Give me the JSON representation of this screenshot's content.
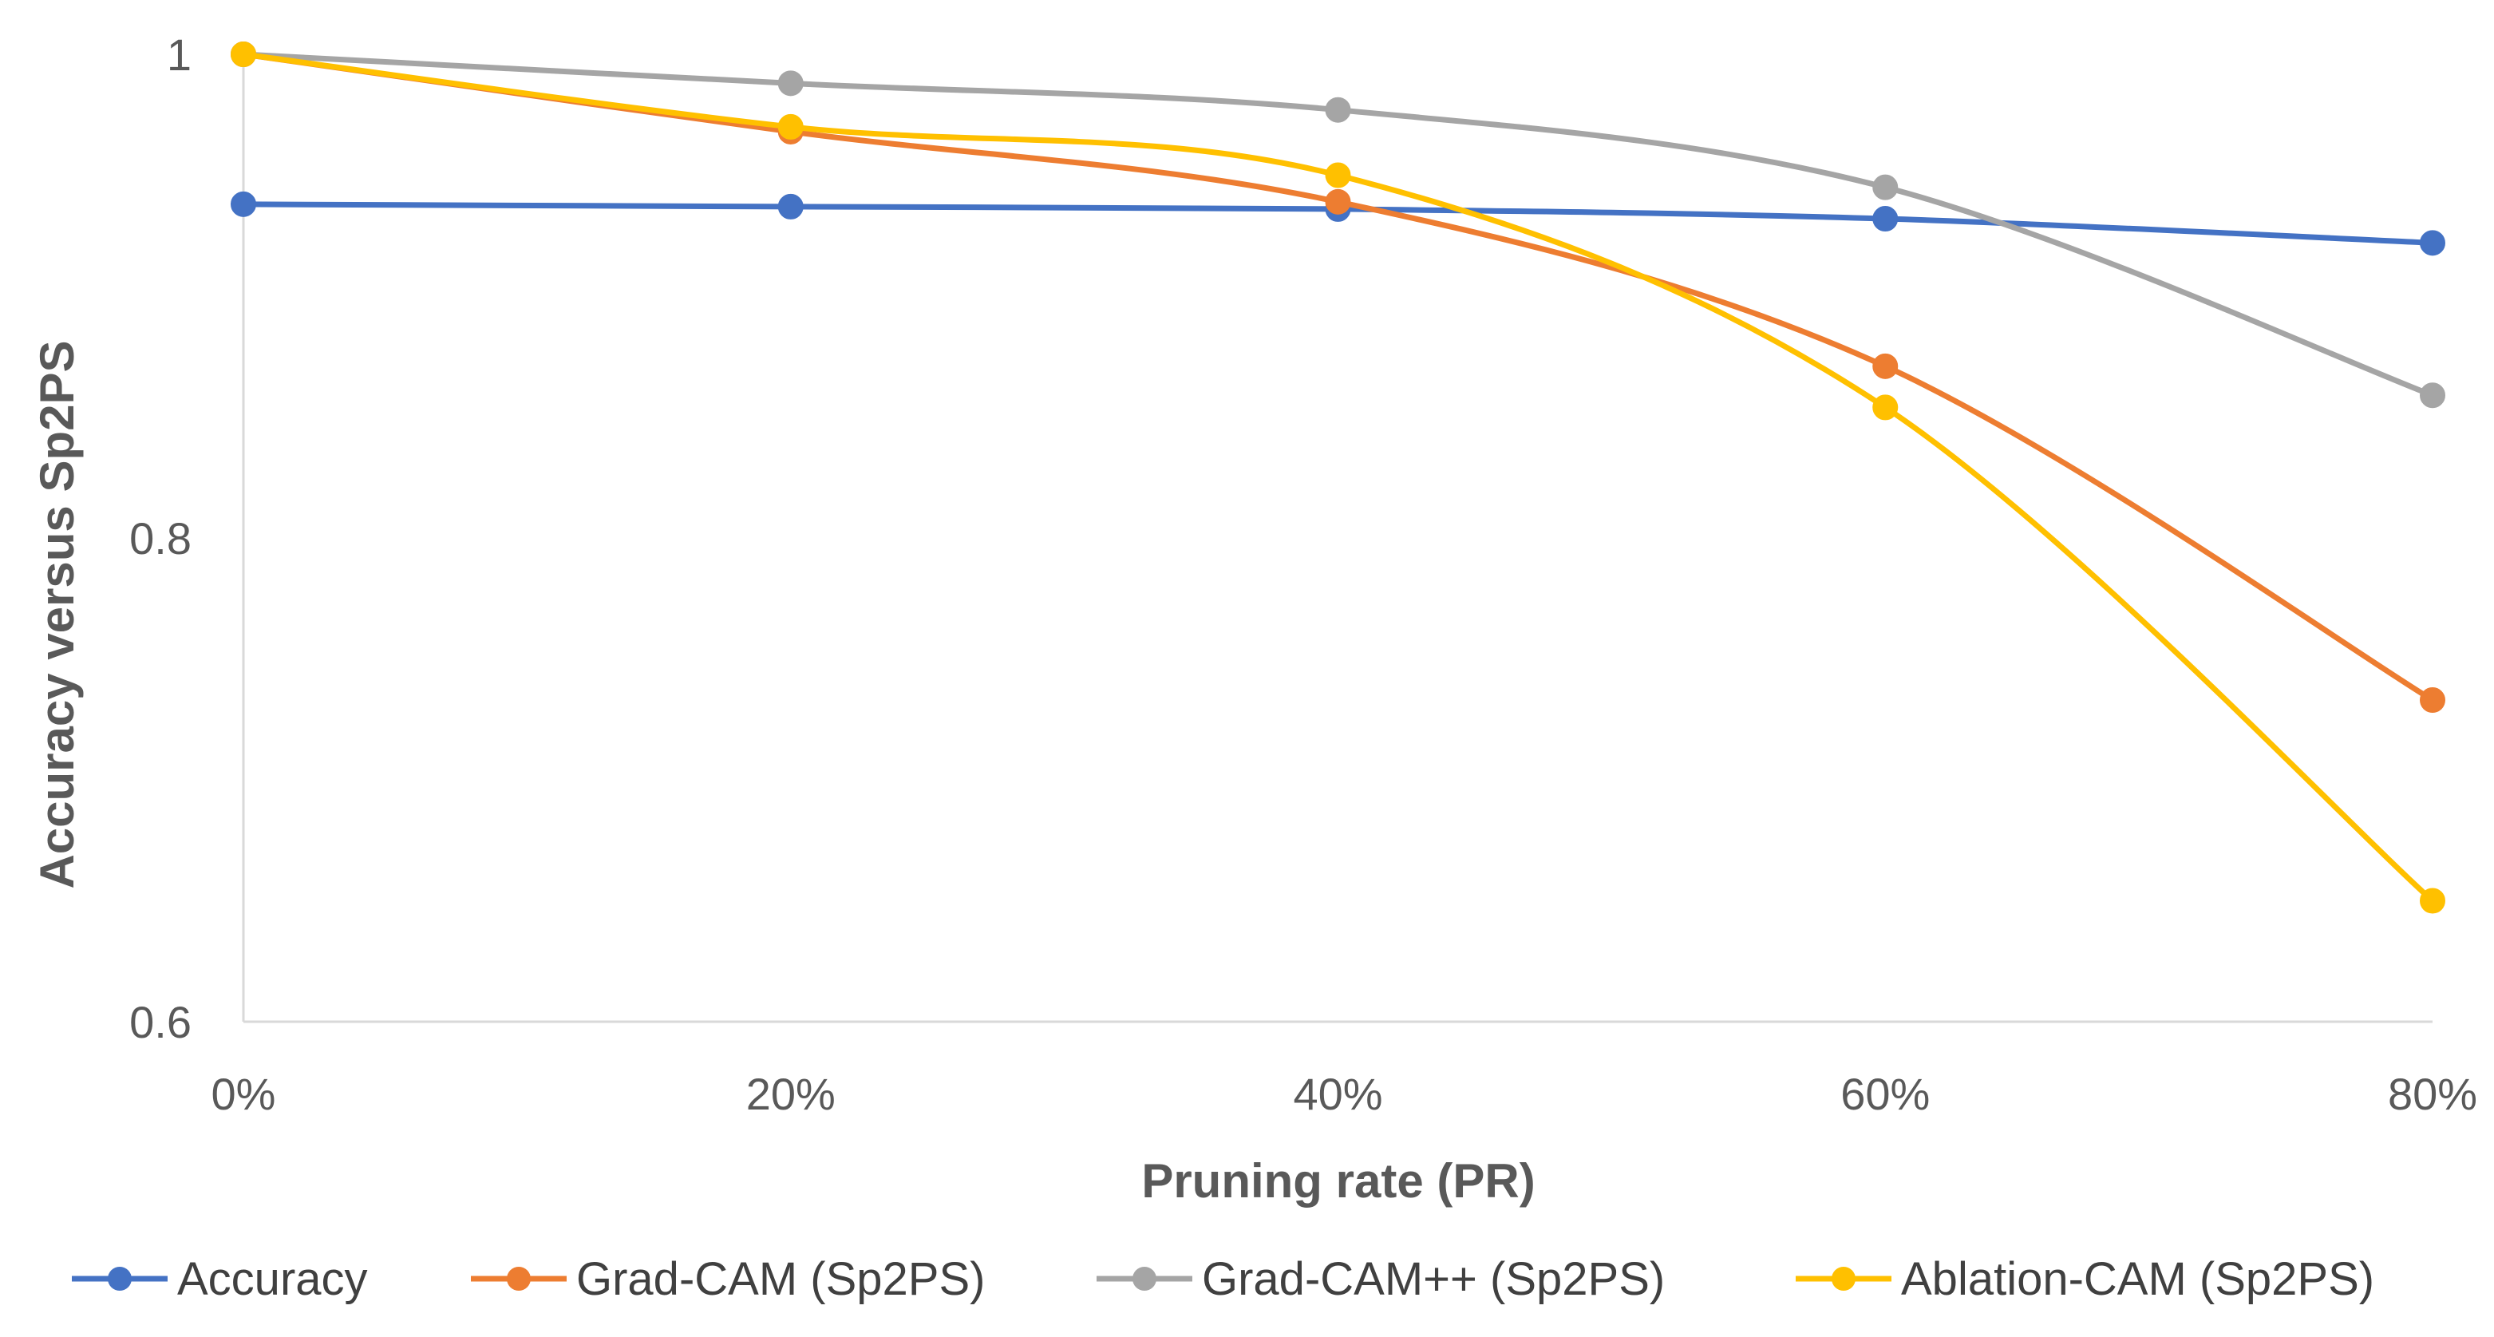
{
  "chart_data": {
    "type": "line",
    "categories": [
      "0%",
      "20%",
      "40%",
      "60%",
      "80%"
    ],
    "series": [
      {
        "name": "Accuracy",
        "color": "#4472C4",
        "values": [
          0.938,
          0.937,
          0.936,
          0.932,
          0.922
        ]
      },
      {
        "name": "Grad-CAM (Sp2PS)",
        "color": "#ED7D31",
        "values": [
          1.0,
          0.968,
          0.939,
          0.871,
          0.733
        ]
      },
      {
        "name": "Grad-CAM++  (Sp2PS)",
        "color": "#A5A5A5",
        "values": [
          1.0,
          0.988,
          0.977,
          0.945,
          0.859
        ]
      },
      {
        "name": "Ablation-CAM  (Sp2PS)",
        "color": "#FFC000",
        "values": [
          1.0,
          0.97,
          0.95,
          0.854,
          0.65
        ]
      }
    ],
    "title": "",
    "xlabel": "Pruning rate (PR)",
    "ylabel": "Accuracy versus  Sp2PS",
    "ylim": [
      0.6,
      1.0
    ],
    "yticks": [
      0.6,
      0.8,
      1.0
    ],
    "ytick_labels": [
      "0.6",
      "0.8",
      "1"
    ],
    "grid": false,
    "legend_position": "bottom",
    "smooth": true
  }
}
